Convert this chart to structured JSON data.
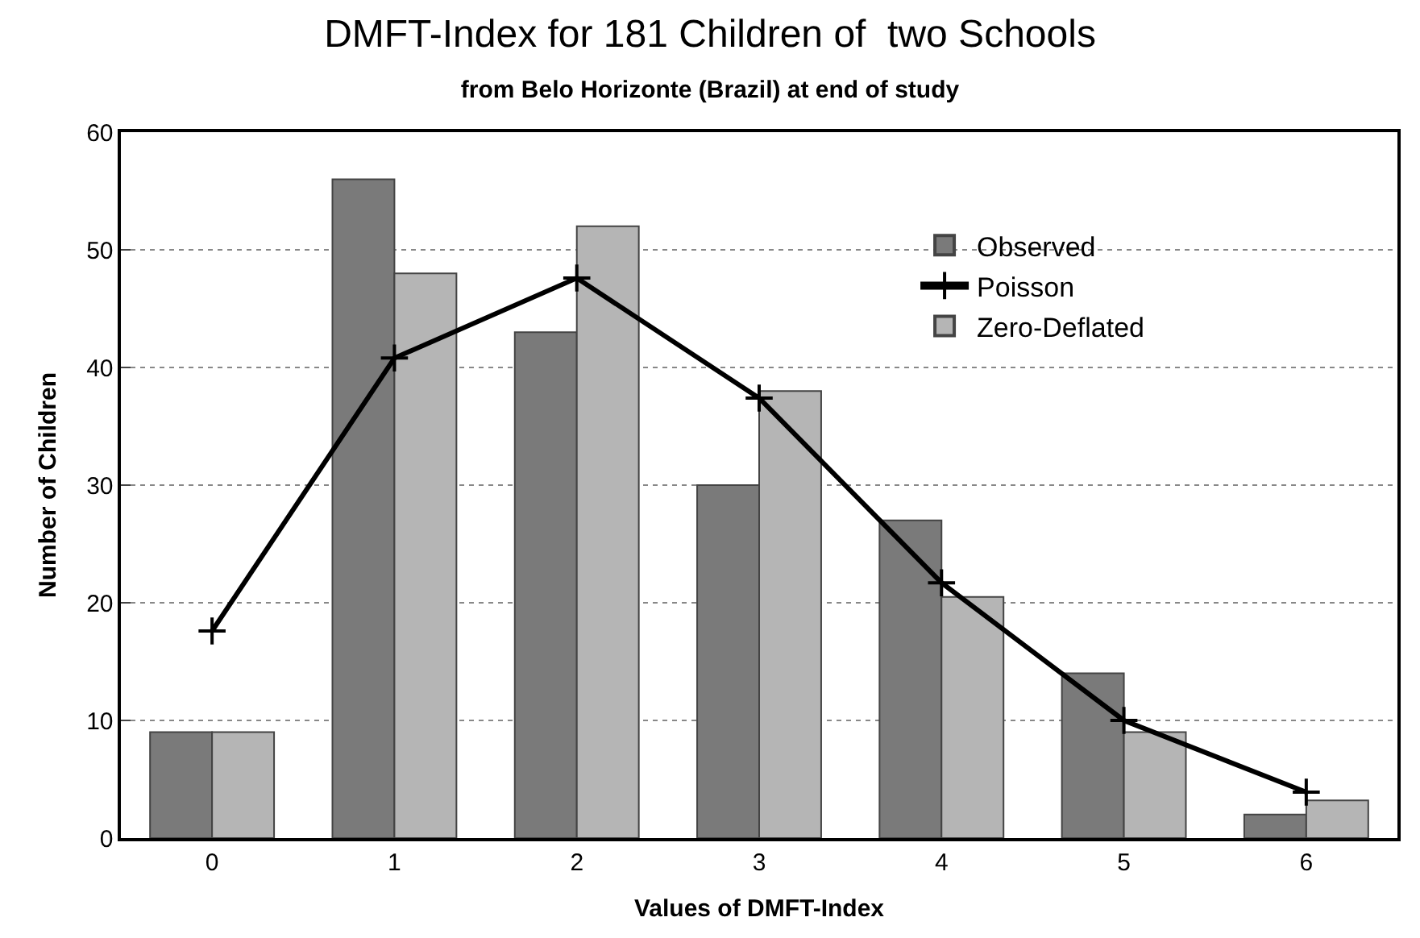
{
  "chart_data": {
    "type": "bar",
    "title": "DMFT-Index for 181 Children of  two Schools",
    "subtitle": "from Belo Horizonte (Brazil) at end of study",
    "xlabel": "Values of DMFT-Index",
    "ylabel": "Number of Children",
    "categories": [
      "0",
      "1",
      "2",
      "3",
      "4",
      "5",
      "6"
    ],
    "series": [
      {
        "name": "Observed",
        "color": "#7a7a7a",
        "values": [
          9,
          56,
          43,
          30,
          27,
          14,
          2
        ]
      },
      {
        "name": "Poisson",
        "type": "line",
        "color": "#000000",
        "marker": "cross",
        "values": [
          17.6,
          40.8,
          47.6,
          37.4,
          21.7,
          10,
          3.9
        ]
      },
      {
        "name": "Zero-Deflated",
        "color": "#b5b5b5",
        "values": [
          9,
          48,
          52,
          38,
          20.5,
          9,
          3.2
        ]
      }
    ],
    "ylim": [
      0,
      60
    ],
    "yticks": [
      0,
      10,
      20,
      30,
      40,
      50,
      60
    ],
    "grid": "y",
    "legend": "top right"
  }
}
